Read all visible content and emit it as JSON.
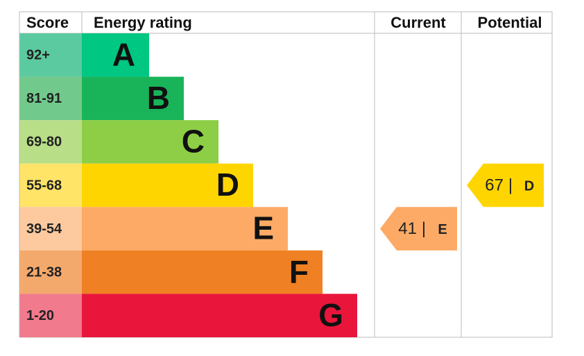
{
  "header": {
    "score": "Score",
    "rating": "Energy rating",
    "current": "Current",
    "potential": "Potential"
  },
  "bands": [
    {
      "score": "92+",
      "grade": "A",
      "color": "#00c781",
      "score_color": "#5ccaa0"
    },
    {
      "score": "81-91",
      "grade": "B",
      "color": "#19b459",
      "score_color": "#72c98c"
    },
    {
      "score": "69-80",
      "grade": "C",
      "color": "#8dce46",
      "score_color": "#b8de88"
    },
    {
      "score": "55-68",
      "grade": "D",
      "color": "#ffd500",
      "score_color": "#ffe468"
    },
    {
      "score": "39-54",
      "grade": "E",
      "color": "#fcaa65",
      "score_color": "#fdcaa0"
    },
    {
      "score": "21-38",
      "grade": "F",
      "color": "#ef8023",
      "score_color": "#f4a96c"
    },
    {
      "score": "1-20",
      "grade": "G",
      "color": "#e9153b",
      "score_color": "#f17a8c"
    }
  ],
  "current": {
    "value": 41,
    "grade": "E"
  },
  "potential": {
    "value": 67,
    "grade": "D"
  }
}
